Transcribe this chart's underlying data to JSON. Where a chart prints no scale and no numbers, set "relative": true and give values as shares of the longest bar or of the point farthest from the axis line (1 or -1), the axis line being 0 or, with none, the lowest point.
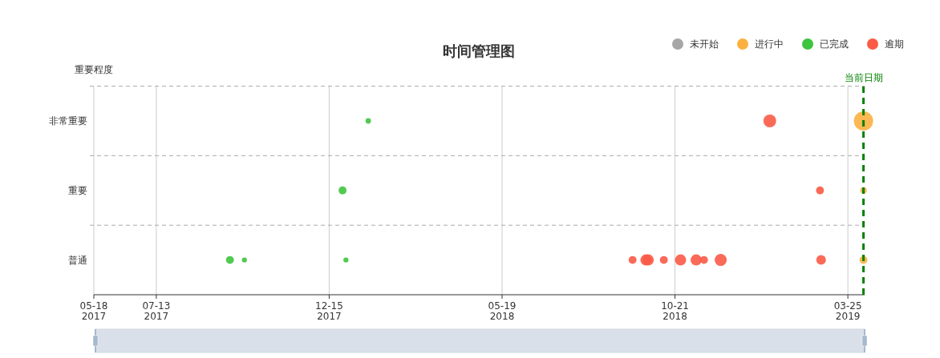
{
  "chart_data": {
    "type": "bubble",
    "title": "时间管理图",
    "ylabel": "重要程度",
    "relative": true,
    "xlim": [
      "2017-05-18",
      "2019-04-09"
    ],
    "xticks": [
      {
        "value": "2017-05-18",
        "label": "05-18\n2017"
      },
      {
        "value": "2017-07-13",
        "label": "07-13\n2017"
      },
      {
        "value": "2017-12-15",
        "label": "12-15\n2017"
      },
      {
        "value": "2018-05-19",
        "label": "05-19\n2018"
      },
      {
        "value": "2018-10-21",
        "label": "10-21\n2018"
      },
      {
        "value": "2019-03-25",
        "label": "03-25\n2019"
      }
    ],
    "series": [
      {
        "name": "未开始",
        "color": "#a6a6a6"
      },
      {
        "name": "进行中",
        "color": "#fcb040",
        "x": [
          "2019-04-08",
          "2019-04-08",
          "2019-04-08"
        ],
        "values": [
          1,
          0.6,
          0.2
        ],
        "sizes": [
          1,
          0.11,
          0.17
        ]
      },
      {
        "name": "已完成",
        "color": "#3ec43e",
        "x": [
          "2017-09-17",
          "2017-09-30",
          "2017-12-30",
          "2017-12-27",
          "2018-01-19"
        ],
        "values": [
          0.2,
          0.2,
          0.2,
          0.6,
          1
        ],
        "sizes": [
          0.17,
          0.07,
          0.07,
          0.17,
          0.08
        ]
      },
      {
        "name": "逾期",
        "color": "#fa5a46",
        "x": [
          "2018-09-13",
          "2018-09-25",
          "2018-09-27",
          "2018-10-11",
          "2018-10-26",
          "2018-11-09",
          "2018-11-16",
          "2018-12-01",
          "2019-03-01",
          "2019-02-28",
          "2019-01-14"
        ],
        "values": [
          0.2,
          0.2,
          0.2,
          0.2,
          0.2,
          0.2,
          0.2,
          0.2,
          0.2,
          0.6,
          1
        ],
        "sizes": [
          0.17,
          0.34,
          0.34,
          0.17,
          0.34,
          0.34,
          0.17,
          0.39,
          0.25,
          0.17,
          0.44
        ]
      }
    ],
    "annotations": [
      "非常重要",
      "重要",
      "普通"
    ],
    "ref_lines": [
      {
        "axis": "x",
        "value": "2019-04-08",
        "label": "当前日期",
        "color": "#008000",
        "line_style": "dashed"
      },
      {
        "axis": "y",
        "value": 0.4,
        "color": "#aaaaaa",
        "line_style": "dashed"
      },
      {
        "axis": "y",
        "value": 0.8,
        "color": "#aaaaaa",
        "line_style": "dashed"
      },
      {
        "axis": "y",
        "value": 1.2,
        "color": "#aaaaaa",
        "line_style": "dashed"
      }
    ],
    "grid": "x",
    "legend": "top right"
  }
}
